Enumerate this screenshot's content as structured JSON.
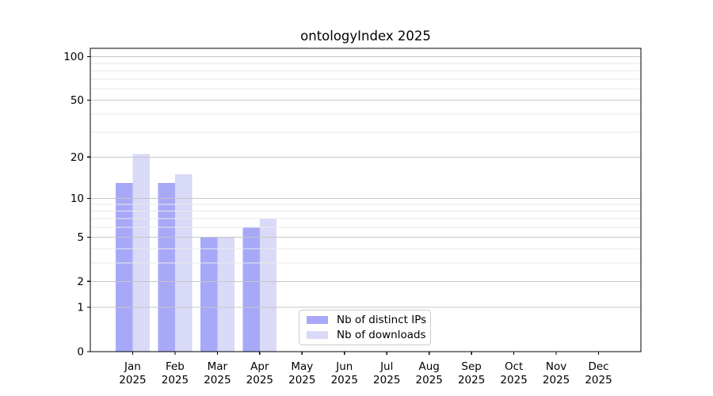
{
  "chart_data": {
    "type": "bar",
    "title": "ontologyIndex 2025",
    "categories": [
      "Jan",
      "Feb",
      "Mar",
      "Apr",
      "May",
      "Jun",
      "Jul",
      "Aug",
      "Sep",
      "Oct",
      "Nov",
      "Dec"
    ],
    "x_year_label": "2025",
    "series": [
      {
        "name": "Nb of distinct IPs",
        "color": "#a8a8f8",
        "values": [
          13,
          13,
          5,
          6,
          null,
          null,
          null,
          null,
          null,
          null,
          null,
          null
        ]
      },
      {
        "name": "Nb of downloads",
        "color": "#d9d9f8",
        "values": [
          21,
          15,
          5,
          7,
          null,
          null,
          null,
          null,
          null,
          null,
          null,
          null
        ]
      }
    ],
    "yscale": "log1p",
    "ylim": [
      0,
      114
    ],
    "y_major_ticks": [
      0,
      1,
      2,
      5,
      10,
      20,
      50,
      100
    ],
    "y_minor_ticks": [
      3,
      4,
      6,
      7,
      8,
      9,
      30,
      40,
      60,
      70,
      80,
      90
    ],
    "grid": true,
    "grid_over_bars": true,
    "legend_position": "lower center",
    "style": {
      "background": "#ffffff",
      "major_grid_color": "#c6c6c6",
      "minor_grid_color": "#eaeaea",
      "spine_color": "#000000",
      "text_color": "#000000"
    }
  }
}
